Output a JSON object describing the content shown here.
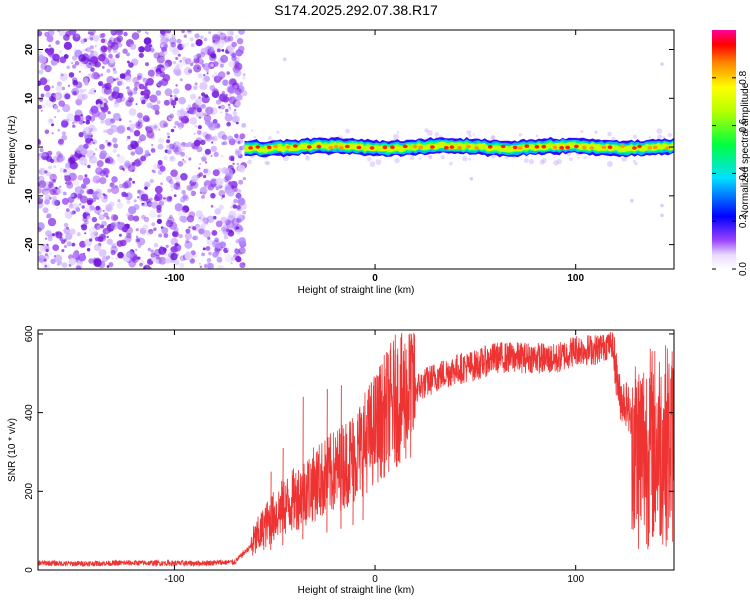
{
  "title": "S174.2025.292.07.38.R17",
  "chart_data": [
    {
      "type": "heatmap",
      "xlabel": "Height of straight line (km)",
      "ylabel": "Frequency (Hz)",
      "xlim": [
        -168,
        149
      ],
      "ylim": [
        -25,
        24
      ],
      "x_ticks": [
        -100,
        0,
        100
      ],
      "x_tick_labels": [
        "-100",
        "0",
        "100"
      ],
      "y_ticks": [
        -20,
        -10,
        0,
        10,
        20
      ],
      "y_tick_labels": [
        "-20",
        "-10",
        "0",
        "10",
        "20"
      ],
      "noise_region_x": [
        -168,
        -65
      ],
      "signal_x_start": -65,
      "signal_freq_hz": 0,
      "colorbar": {
        "label": "Normalized spectral amplitude",
        "range": [
          0,
          1
        ],
        "ticks": [
          0.0,
          0.2,
          0.4,
          0.6,
          0.8
        ],
        "tick_labels": [
          "0.0",
          "0.2",
          "0.4",
          "0.6",
          "0.8"
        ],
        "colormap": "rainbow"
      }
    },
    {
      "type": "line",
      "xlabel": "Height of straight line (km)",
      "ylabel": "SNR (10 * v/v)",
      "xlim": [
        -168,
        149
      ],
      "ylim": [
        0,
        610
      ],
      "x_ticks": [
        -100,
        0,
        100
      ],
      "x_tick_labels": [
        "-100",
        "0",
        "100"
      ],
      "y_ticks": [
        0,
        200,
        400,
        600
      ],
      "y_tick_labels": [
        "0",
        "200",
        "400",
        "600"
      ],
      "color": "#ee3333",
      "x": [
        -168,
        -150,
        -120,
        -90,
        -70,
        -62,
        -55,
        -48,
        -40,
        -30,
        -20,
        -10,
        0,
        10,
        20,
        30,
        40,
        50,
        60,
        70,
        80,
        90,
        100,
        110,
        118,
        122,
        126,
        130,
        140,
        149
      ],
      "y": [
        18,
        16,
        18,
        17,
        20,
        60,
        110,
        150,
        180,
        220,
        250,
        290,
        360,
        430,
        460,
        490,
        510,
        520,
        540,
        540,
        540,
        535,
        560,
        560,
        580,
        440,
        420,
        300,
        320,
        320
      ],
      "spikes": [
        {
          "x": -52,
          "y": 250
        },
        {
          "x": -46,
          "y": 310
        },
        {
          "x": -36,
          "y": 440
        },
        {
          "x": -24,
          "y": 460
        },
        {
          "x": -17,
          "y": 470
        },
        {
          "x": -11,
          "y": 340
        },
        {
          "x": -6,
          "y": 400
        }
      ]
    }
  ]
}
